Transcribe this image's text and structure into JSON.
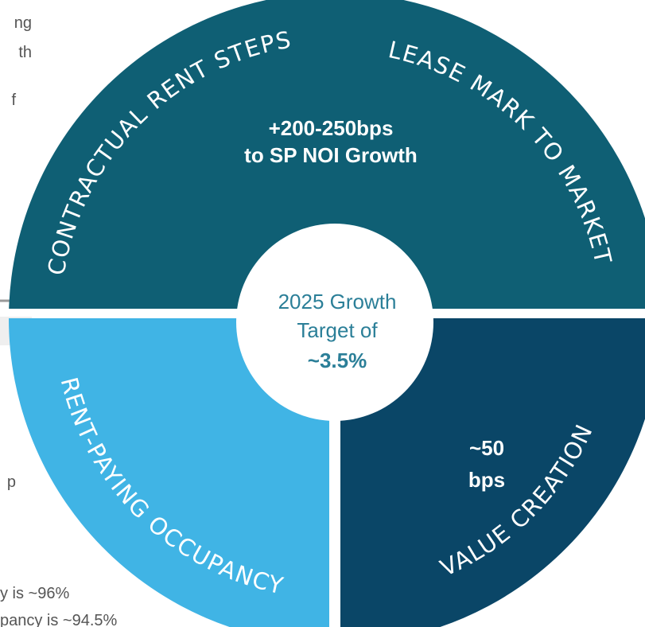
{
  "left_text": [
    "ng",
    "th",
    "f",
    "p",
    "y is ~96%",
    "pancy is ~94.5%"
  ],
  "segments": [
    {
      "label": "CONTRACTUAL RENT STEPS"
    },
    {
      "label": "LEASE MARK TO MARKET"
    },
    {
      "label": "RENT-PAYING OCCUPANCY"
    },
    {
      "label": "VALUE CREATION"
    }
  ],
  "top_callout": [
    "+200-250bps",
    "to SP NOI Growth"
  ],
  "right_callout": [
    "~50",
    "bps"
  ],
  "center": [
    "2025 Growth",
    "Target of",
    "~3.5%"
  ]
}
